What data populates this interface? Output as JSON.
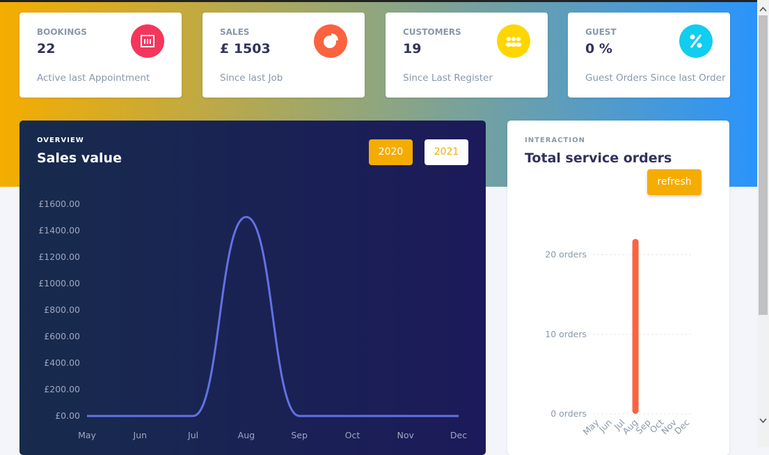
{
  "cards": [
    {
      "title": "BOOKINGS",
      "value": "22",
      "subtitle": "Active last Appointment",
      "icon_color": "#f5365c"
    },
    {
      "title": "SALES",
      "value": "£ 1503",
      "subtitle": "Since last Job",
      "icon_color": "#fb6340"
    },
    {
      "title": "CUSTOMERS",
      "value": "19",
      "subtitle": "Since Last Register",
      "icon_color": "#ffd600"
    },
    {
      "title": "GUEST",
      "value": "0 %",
      "subtitle": "Guest Orders Since last Order",
      "icon_color": "#11cdef"
    }
  ],
  "chart_data": [
    {
      "type": "line",
      "overline": "OVERVIEW",
      "title": "Sales value",
      "buttons": [
        "2020",
        "2021"
      ],
      "categories": [
        "May",
        "Jun",
        "Jul",
        "Aug",
        "Sep",
        "Oct",
        "Nov",
        "Dec"
      ],
      "values": [
        0,
        0,
        0,
        1503,
        0,
        0,
        0,
        0
      ],
      "color": "#6272e4",
      "ylim": [
        0,
        1600
      ],
      "yticks": [
        {
          "value": 0,
          "label": "£0.00"
        },
        {
          "value": 200,
          "label": "£200.00"
        },
        {
          "value": 400,
          "label": "£400.00"
        },
        {
          "value": 600,
          "label": "£600.00"
        },
        {
          "value": 800,
          "label": "£800.00"
        },
        {
          "value": 1000,
          "label": "£1000.00"
        },
        {
          "value": 1200,
          "label": "£1200.00"
        },
        {
          "value": 1400,
          "label": "£1400.00"
        },
        {
          "value": 1600,
          "label": "£1600.00"
        }
      ],
      "grid": false
    },
    {
      "type": "bar",
      "overline": "INTERACTION",
      "title": "Total service orders",
      "button": "refresh",
      "categories": [
        "May",
        "Jun",
        "Jul",
        "Aug",
        "Sep",
        "Oct",
        "Nov",
        "Dec"
      ],
      "values": [
        0,
        0,
        0,
        22,
        0,
        0,
        0,
        0
      ],
      "color": "#fb6340",
      "ylim": [
        0,
        24
      ],
      "yticks": [
        {
          "value": 0,
          "label": "0 orders"
        },
        {
          "value": 10,
          "label": "10 orders"
        },
        {
          "value": 20,
          "label": "20 orders"
        }
      ],
      "grid": true
    }
  ]
}
